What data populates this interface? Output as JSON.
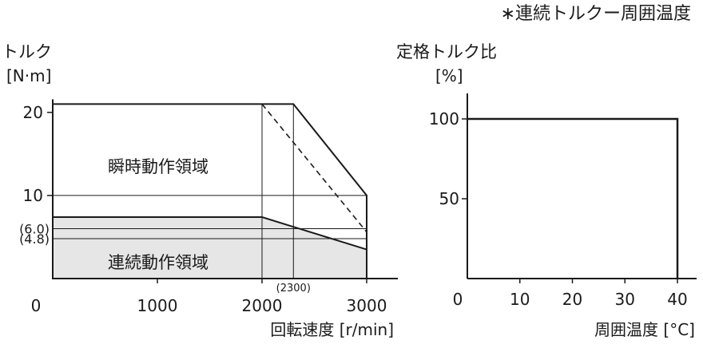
{
  "figure_note": "∗連続トルクー周囲温度",
  "chart_data": [
    {
      "type": "area",
      "ylabel_line1": "トルク",
      "ylabel_line2": "[N·m]",
      "xlabel": "回転速度 [r/min]",
      "xlim": [
        0,
        3000
      ],
      "ylim": [
        0,
        22
      ],
      "x_ticks": [
        0,
        1000,
        2000,
        3000
      ],
      "y_ticks": [
        10,
        20
      ],
      "extra_y_ticks": [
        {
          "value": 6.0,
          "label": "(6.0)"
        },
        {
          "value": 4.8,
          "label": "(4.8)"
        }
      ],
      "annotation_x": {
        "value": 2300,
        "label": "(2300)"
      },
      "regions": [
        {
          "name": "瞬時動作領域",
          "points": [
            [
              0,
              21
            ],
            [
              2300,
              21
            ],
            [
              3000,
              10
            ],
            [
              3000,
              0
            ],
            [
              0,
              0
            ]
          ],
          "fill": "#ffffff"
        },
        {
          "name": "連続動作領域",
          "points": [
            [
              0,
              7.4
            ],
            [
              2000,
              7.4
            ],
            [
              3000,
              3.5
            ],
            [
              3000,
              0
            ],
            [
              0,
              0
            ]
          ],
          "fill": "#e6e6e6"
        }
      ],
      "dashed_line": [
        [
          2000,
          21
        ],
        [
          3000,
          5.6
        ]
      ],
      "grid_lines": {
        "horizontal": [
          10,
          6.0,
          4.8
        ],
        "vertical": [
          2000,
          2300
        ]
      },
      "colors": {
        "line": "#1a1a1a",
        "continuous_fill": "#e6e6e6"
      }
    },
    {
      "type": "line",
      "ylabel_line1": "定格トルク比",
      "ylabel_line2": "[%]",
      "xlabel": "周囲温度 [°C]",
      "xlim": [
        0,
        40
      ],
      "ylim": [
        0,
        115
      ],
      "x_ticks": [
        0,
        10,
        20,
        30,
        40
      ],
      "y_ticks": [
        50,
        100
      ],
      "series": [
        {
          "x": [
            0,
            40,
            40
          ],
          "y": [
            100,
            100,
            0
          ]
        }
      ]
    }
  ]
}
